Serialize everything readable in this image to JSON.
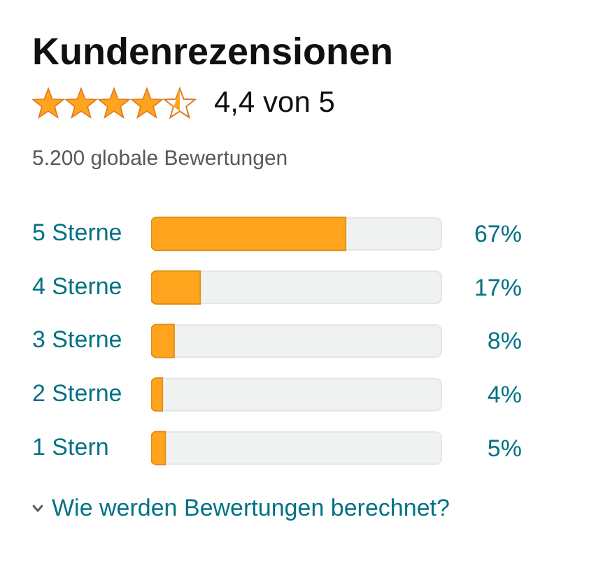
{
  "chart_data": {
    "type": "bar",
    "orientation": "horizontal",
    "title": "Kundenrezensionen",
    "subtitle": "4,4 von 5",
    "annotations": [
      "5.200 globale Bewertungen",
      "Wie werden Bewertungen berechnet?"
    ],
    "categories": [
      "5 Sterne",
      "4 Sterne",
      "3 Sterne",
      "2 Sterne",
      "1 Stern"
    ],
    "values": [
      67,
      17,
      8,
      4,
      5
    ],
    "color": "#ffa41c",
    "value_labels": [
      "67%",
      "17%",
      "8%",
      "4%",
      "5%"
    ],
    "xlim": [
      0,
      100
    ],
    "tick_labels": "y"
  }
}
